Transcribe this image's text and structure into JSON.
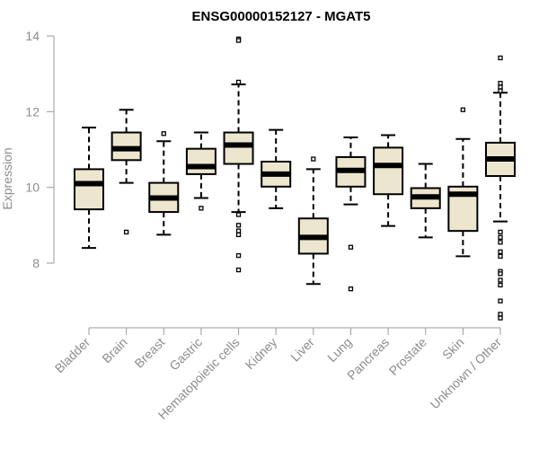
{
  "chart_data": {
    "type": "boxplot",
    "title": "ENSG00000152127 - MGAT5",
    "xlabel": "",
    "ylabel": "Expression",
    "ylim": [
      6.3,
      14.2
    ],
    "yticks": [
      8,
      10,
      12,
      14
    ],
    "box_fill": "#ede6cf",
    "categories": [
      "Bladder",
      "Brain",
      "Breast",
      "Gastric",
      "Hematopoietic cells",
      "Kidney",
      "Liver",
      "Lung",
      "Pancreas",
      "Prostate",
      "Skin",
      "Unknown / Other"
    ],
    "boxes": [
      {
        "label": "Bladder",
        "whisker_low": 8.4,
        "q1": 9.42,
        "median": 10.1,
        "q3": 10.48,
        "whisker_high": 11.58,
        "outliers": []
      },
      {
        "label": "Brain",
        "whisker_low": 10.12,
        "q1": 10.72,
        "median": 11.02,
        "q3": 11.45,
        "whisker_high": 12.05,
        "outliers": [
          8.82
        ]
      },
      {
        "label": "Breast",
        "whisker_low": 8.75,
        "q1": 9.35,
        "median": 9.72,
        "q3": 10.12,
        "whisker_high": 11.22,
        "outliers": [
          11.42
        ]
      },
      {
        "label": "Gastric",
        "whisker_low": 9.72,
        "q1": 10.35,
        "median": 10.55,
        "q3": 11.02,
        "whisker_high": 11.45,
        "outliers": [
          9.45
        ]
      },
      {
        "label": "Hematopoietic cells",
        "whisker_low": 9.35,
        "q1": 10.62,
        "median": 11.12,
        "q3": 11.45,
        "whisker_high": 12.72,
        "outliers": [
          13.92,
          13.88,
          12.78,
          9.28,
          9.0,
          8.85,
          8.75,
          8.2,
          7.82
        ]
      },
      {
        "label": "Kidney",
        "whisker_low": 9.45,
        "q1": 10.02,
        "median": 10.35,
        "q3": 10.68,
        "whisker_high": 11.52,
        "outliers": []
      },
      {
        "label": "Liver",
        "whisker_low": 7.45,
        "q1": 8.25,
        "median": 8.68,
        "q3": 9.18,
        "whisker_high": 10.48,
        "outliers": [
          10.75
        ]
      },
      {
        "label": "Lung",
        "whisker_low": 9.55,
        "q1": 10.02,
        "median": 10.45,
        "q3": 10.8,
        "whisker_high": 11.32,
        "outliers": [
          8.42,
          7.32
        ]
      },
      {
        "label": "Pancreas",
        "whisker_low": 8.98,
        "q1": 9.82,
        "median": 10.58,
        "q3": 11.05,
        "whisker_high": 11.38,
        "outliers": []
      },
      {
        "label": "Prostate",
        "whisker_low": 8.68,
        "q1": 9.45,
        "median": 9.75,
        "q3": 9.98,
        "whisker_high": 10.62,
        "outliers": []
      },
      {
        "label": "Skin",
        "whisker_low": 8.18,
        "q1": 8.85,
        "median": 9.82,
        "q3": 10.02,
        "whisker_high": 11.28,
        "outliers": [
          12.05
        ]
      },
      {
        "label": "Unknown / Other",
        "whisker_low": 9.1,
        "q1": 10.3,
        "median": 10.75,
        "q3": 11.18,
        "whisker_high": 12.5,
        "outliers": [
          13.42,
          12.75,
          12.65,
          12.55,
          8.82,
          8.68,
          8.55,
          8.3,
          8.18,
          7.78,
          7.72,
          7.55,
          7.42,
          7.0,
          6.65,
          6.55
        ]
      }
    ]
  }
}
